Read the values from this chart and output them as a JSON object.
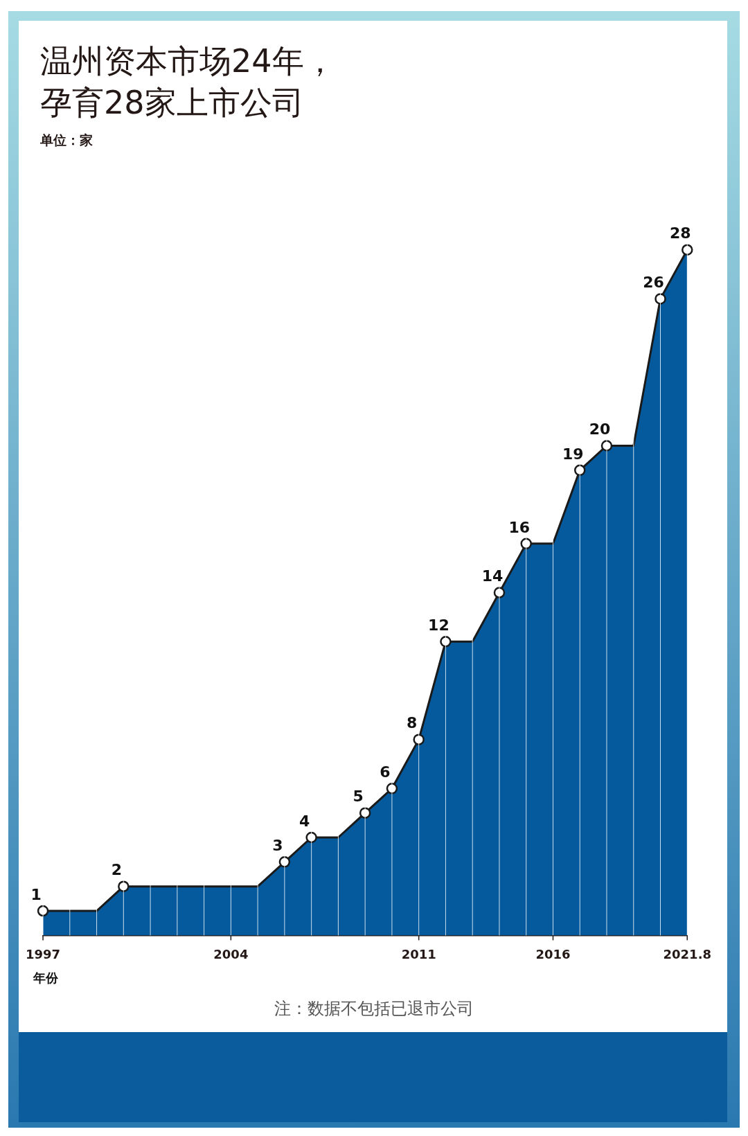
{
  "chart_data": {
    "type": "area",
    "title": "温州资本市场24年，孕育28家上市公司",
    "subtitle": "单位：家",
    "xlabel": "年份",
    "categories": [
      "1997",
      null,
      null,
      null,
      null,
      null,
      null,
      "2004",
      null,
      null,
      null,
      null,
      null,
      null,
      "2011",
      null,
      null,
      null,
      null,
      "2016",
      null,
      null,
      null,
      null,
      "2021.8"
    ],
    "series": [
      {
        "color": "#045a9c",
        "values": [
          1,
          1,
          1,
          2,
          2,
          2,
          2,
          2,
          2,
          3,
          4,
          4,
          5,
          6,
          8,
          12,
          12,
          14,
          16,
          16,
          19,
          20,
          20,
          26,
          28
        ],
        "value_labels": [
          "1",
          null,
          null,
          "2",
          null,
          null,
          null,
          null,
          null,
          "3",
          "4",
          null,
          "5",
          "6",
          "8",
          "12",
          null,
          "14",
          "16",
          null,
          "19",
          "20",
          null,
          "26",
          "28"
        ]
      }
    ],
    "tick_labels": "x",
    "grid": "x",
    "marker": "circle",
    "line_style": "solid",
    "legend": false,
    "annotations": [
      "注：数据不包括已退市公司"
    ]
  }
}
